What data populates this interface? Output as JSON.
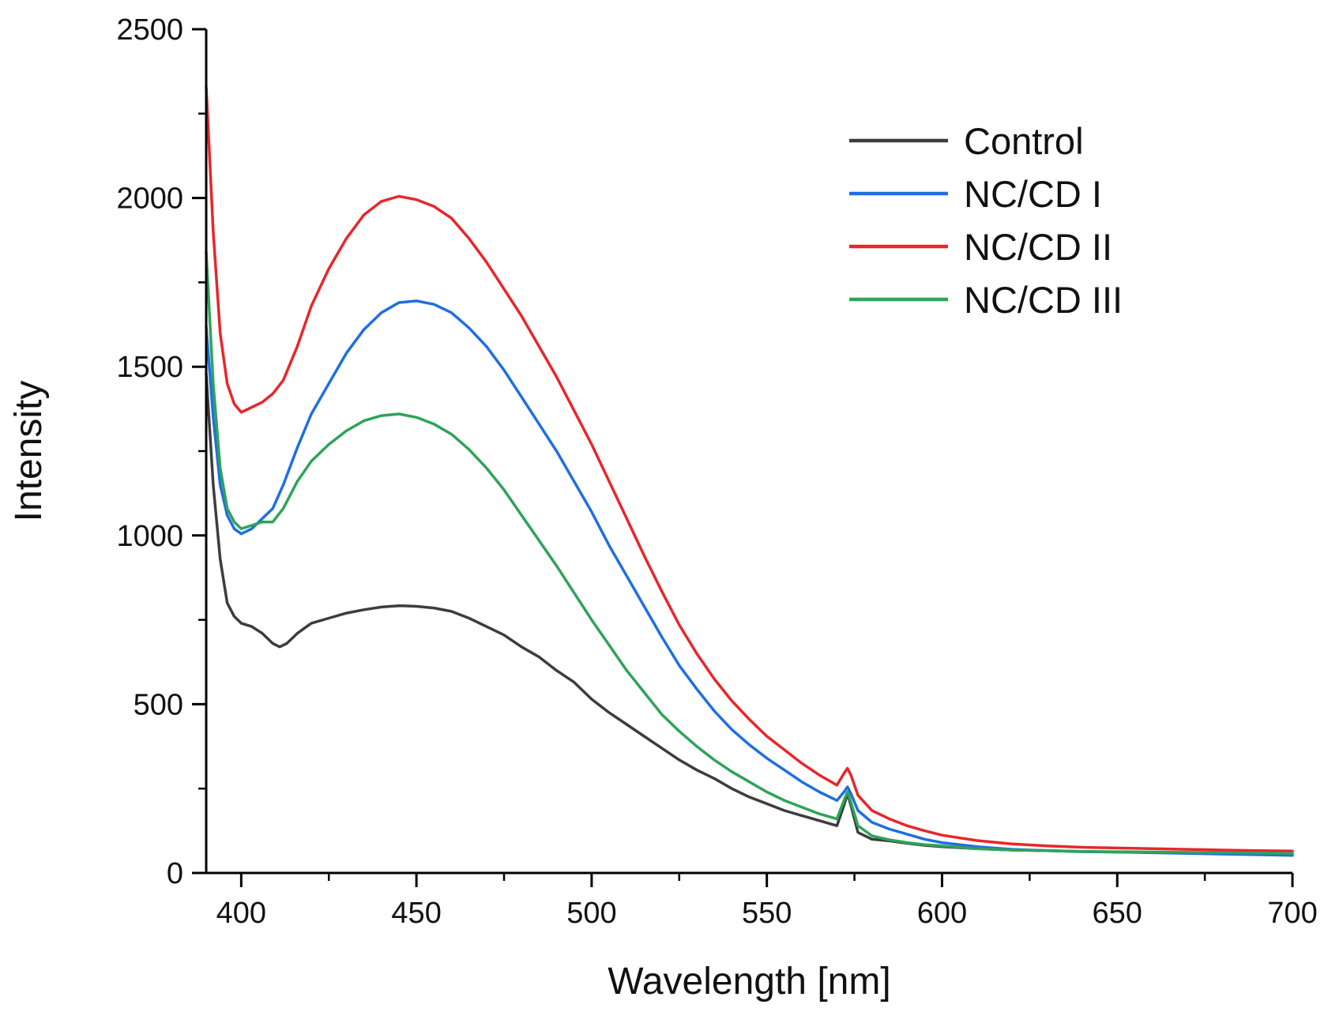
{
  "chart_data": {
    "type": "line",
    "title": "",
    "xlabel": "Wavelength [nm]",
    "ylabel": "Intensity",
    "xlim": [
      390,
      700
    ],
    "ylim": [
      0,
      2500
    ],
    "x_ticks": [
      400,
      450,
      500,
      550,
      600,
      650,
      700
    ],
    "x_minor_step": 25,
    "y_ticks": [
      0,
      500,
      1000,
      1500,
      2000,
      2500
    ],
    "y_minor_step": 250,
    "grid": false,
    "legend_position": "top-right",
    "series": [
      {
        "name": "Control",
        "color": "#3d3d3d",
        "points": [
          [
            390,
            1480
          ],
          [
            392,
            1150
          ],
          [
            394,
            930
          ],
          [
            396,
            800
          ],
          [
            398,
            760
          ],
          [
            400,
            740
          ],
          [
            403,
            730
          ],
          [
            406,
            710
          ],
          [
            409,
            680
          ],
          [
            411,
            670
          ],
          [
            413,
            680
          ],
          [
            416,
            710
          ],
          [
            420,
            740
          ],
          [
            425,
            755
          ],
          [
            430,
            770
          ],
          [
            435,
            780
          ],
          [
            440,
            788
          ],
          [
            445,
            792
          ],
          [
            450,
            790
          ],
          [
            455,
            785
          ],
          [
            460,
            775
          ],
          [
            465,
            755
          ],
          [
            470,
            730
          ],
          [
            475,
            705
          ],
          [
            480,
            670
          ],
          [
            485,
            640
          ],
          [
            490,
            600
          ],
          [
            495,
            565
          ],
          [
            500,
            515
          ],
          [
            505,
            475
          ],
          [
            510,
            440
          ],
          [
            515,
            405
          ],
          [
            520,
            370
          ],
          [
            525,
            335
          ],
          [
            530,
            305
          ],
          [
            535,
            280
          ],
          [
            540,
            250
          ],
          [
            545,
            225
          ],
          [
            550,
            205
          ],
          [
            555,
            185
          ],
          [
            560,
            170
          ],
          [
            565,
            155
          ],
          [
            570,
            140
          ],
          [
            572,
            200
          ],
          [
            573,
            235
          ],
          [
            574,
            200
          ],
          [
            576,
            120
          ],
          [
            580,
            100
          ],
          [
            585,
            95
          ],
          [
            590,
            88
          ],
          [
            595,
            82
          ],
          [
            600,
            78
          ],
          [
            610,
            72
          ],
          [
            620,
            68
          ],
          [
            630,
            66
          ],
          [
            640,
            64
          ],
          [
            650,
            62
          ],
          [
            660,
            61
          ],
          [
            670,
            60
          ],
          [
            680,
            59
          ],
          [
            690,
            58
          ],
          [
            700,
            57
          ]
        ]
      },
      {
        "name": "NC/CD I",
        "color": "#1f6fe0",
        "points": [
          [
            390,
            1620
          ],
          [
            392,
            1350
          ],
          [
            394,
            1150
          ],
          [
            396,
            1060
          ],
          [
            398,
            1020
          ],
          [
            400,
            1005
          ],
          [
            403,
            1020
          ],
          [
            406,
            1050
          ],
          [
            409,
            1080
          ],
          [
            412,
            1150
          ],
          [
            416,
            1260
          ],
          [
            420,
            1360
          ],
          [
            425,
            1450
          ],
          [
            430,
            1540
          ],
          [
            435,
            1610
          ],
          [
            440,
            1660
          ],
          [
            445,
            1690
          ],
          [
            450,
            1695
          ],
          [
            455,
            1685
          ],
          [
            460,
            1660
          ],
          [
            465,
            1615
          ],
          [
            470,
            1560
          ],
          [
            475,
            1490
          ],
          [
            480,
            1410
          ],
          [
            485,
            1330
          ],
          [
            490,
            1250
          ],
          [
            495,
            1160
          ],
          [
            500,
            1070
          ],
          [
            505,
            970
          ],
          [
            510,
            880
          ],
          [
            515,
            790
          ],
          [
            520,
            700
          ],
          [
            525,
            615
          ],
          [
            530,
            545
          ],
          [
            535,
            480
          ],
          [
            540,
            425
          ],
          [
            545,
            380
          ],
          [
            550,
            340
          ],
          [
            555,
            305
          ],
          [
            560,
            270
          ],
          [
            565,
            240
          ],
          [
            570,
            215
          ],
          [
            572,
            240
          ],
          [
            573,
            255
          ],
          [
            574,
            235
          ],
          [
            576,
            185
          ],
          [
            580,
            150
          ],
          [
            585,
            130
          ],
          [
            590,
            115
          ],
          [
            595,
            100
          ],
          [
            600,
            90
          ],
          [
            610,
            78
          ],
          [
            620,
            70
          ],
          [
            630,
            66
          ],
          [
            640,
            63
          ],
          [
            650,
            62
          ],
          [
            660,
            60
          ],
          [
            670,
            58
          ],
          [
            680,
            56
          ],
          [
            690,
            54
          ],
          [
            700,
            52
          ]
        ]
      },
      {
        "name": "NC/CD II",
        "color": "#e8262b",
        "points": [
          [
            390,
            2330
          ],
          [
            392,
            1900
          ],
          [
            394,
            1600
          ],
          [
            396,
            1450
          ],
          [
            398,
            1390
          ],
          [
            400,
            1365
          ],
          [
            403,
            1380
          ],
          [
            406,
            1395
          ],
          [
            409,
            1420
          ],
          [
            412,
            1460
          ],
          [
            416,
            1560
          ],
          [
            420,
            1680
          ],
          [
            425,
            1790
          ],
          [
            430,
            1880
          ],
          [
            435,
            1950
          ],
          [
            440,
            1990
          ],
          [
            445,
            2005
          ],
          [
            450,
            1995
          ],
          [
            455,
            1975
          ],
          [
            460,
            1940
          ],
          [
            465,
            1880
          ],
          [
            470,
            1810
          ],
          [
            475,
            1730
          ],
          [
            480,
            1650
          ],
          [
            485,
            1560
          ],
          [
            490,
            1470
          ],
          [
            495,
            1370
          ],
          [
            500,
            1270
          ],
          [
            505,
            1160
          ],
          [
            510,
            1050
          ],
          [
            515,
            940
          ],
          [
            520,
            835
          ],
          [
            525,
            735
          ],
          [
            530,
            650
          ],
          [
            535,
            575
          ],
          [
            540,
            510
          ],
          [
            545,
            455
          ],
          [
            550,
            405
          ],
          [
            555,
            365
          ],
          [
            560,
            325
          ],
          [
            565,
            290
          ],
          [
            570,
            260
          ],
          [
            572,
            295
          ],
          [
            573,
            310
          ],
          [
            574,
            290
          ],
          [
            576,
            230
          ],
          [
            580,
            185
          ],
          [
            585,
            160
          ],
          [
            590,
            140
          ],
          [
            595,
            125
          ],
          [
            600,
            112
          ],
          [
            610,
            96
          ],
          [
            620,
            86
          ],
          [
            630,
            80
          ],
          [
            640,
            76
          ],
          [
            650,
            74
          ],
          [
            660,
            72
          ],
          [
            670,
            70
          ],
          [
            680,
            68
          ],
          [
            690,
            66
          ],
          [
            700,
            65
          ]
        ]
      },
      {
        "name": "NC/CD III",
        "color": "#2fa35a",
        "points": [
          [
            390,
            1840
          ],
          [
            392,
            1450
          ],
          [
            394,
            1200
          ],
          [
            396,
            1080
          ],
          [
            398,
            1040
          ],
          [
            400,
            1020
          ],
          [
            403,
            1030
          ],
          [
            406,
            1040
          ],
          [
            409,
            1040
          ],
          [
            412,
            1080
          ],
          [
            416,
            1160
          ],
          [
            420,
            1220
          ],
          [
            425,
            1270
          ],
          [
            430,
            1310
          ],
          [
            435,
            1340
          ],
          [
            440,
            1355
          ],
          [
            445,
            1360
          ],
          [
            450,
            1350
          ],
          [
            455,
            1330
          ],
          [
            460,
            1300
          ],
          [
            465,
            1255
          ],
          [
            470,
            1200
          ],
          [
            475,
            1135
          ],
          [
            480,
            1060
          ],
          [
            485,
            985
          ],
          [
            490,
            910
          ],
          [
            495,
            830
          ],
          [
            500,
            750
          ],
          [
            505,
            675
          ],
          [
            510,
            600
          ],
          [
            515,
            535
          ],
          [
            520,
            470
          ],
          [
            525,
            420
          ],
          [
            530,
            375
          ],
          [
            535,
            335
          ],
          [
            540,
            300
          ],
          [
            545,
            270
          ],
          [
            550,
            240
          ],
          [
            555,
            215
          ],
          [
            560,
            195
          ],
          [
            565,
            175
          ],
          [
            570,
            160
          ],
          [
            572,
            215
          ],
          [
            573,
            240
          ],
          [
            574,
            210
          ],
          [
            576,
            140
          ],
          [
            580,
            110
          ],
          [
            585,
            98
          ],
          [
            590,
            90
          ],
          [
            595,
            84
          ],
          [
            600,
            80
          ],
          [
            610,
            72
          ],
          [
            620,
            68
          ],
          [
            630,
            66
          ],
          [
            640,
            64
          ],
          [
            650,
            63
          ],
          [
            660,
            62
          ],
          [
            670,
            61
          ],
          [
            680,
            60
          ],
          [
            690,
            59
          ],
          [
            700,
            58
          ]
        ]
      }
    ]
  }
}
